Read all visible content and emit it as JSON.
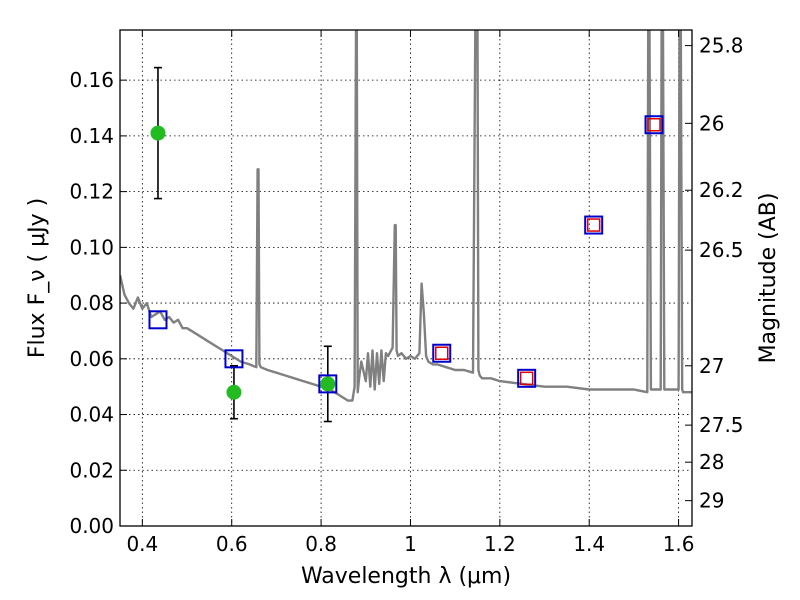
{
  "chart_data": {
    "type": "line",
    "xlabel": "Wavelength  λ (μm)",
    "ylabel": "Flux  F_ν  ( μJy )",
    "ylabel_right": "Magnitude (AB)",
    "xlim": [
      0.35,
      1.63
    ],
    "ylim": [
      0.0,
      0.178
    ],
    "grid": true,
    "x_ticks": [
      0.4,
      0.6,
      0.8,
      1.0,
      1.2,
      1.4,
      1.6
    ],
    "x_tick_labels": [
      "0.4",
      "0.6",
      "0.8",
      "1",
      "1.2",
      "1.4",
      "1.6"
    ],
    "y_ticks": [
      0.0,
      0.02,
      0.04,
      0.06,
      0.08,
      0.1,
      0.12,
      0.14,
      0.16
    ],
    "y_tick_labels": [
      "0.00",
      "0.02",
      "0.04",
      "0.06",
      "0.08",
      "0.10",
      "0.12",
      "0.14",
      "0.16"
    ],
    "right_ticks": [
      {
        "flux": 0.1724,
        "label": "25.8"
      },
      {
        "flux": 0.1445,
        "label": "26"
      },
      {
        "flux": 0.1205,
        "label": "26.2"
      },
      {
        "flux": 0.099,
        "label": "26.5"
      },
      {
        "flux": 0.0575,
        "label": "27"
      },
      {
        "flux": 0.0362,
        "label": "27.5"
      },
      {
        "flux": 0.0229,
        "label": "28"
      },
      {
        "flux": 0.0091,
        "label": "29"
      }
    ],
    "series": [
      {
        "type": "line",
        "color": "#808080",
        "x": [
          0.35,
          0.36,
          0.37,
          0.38,
          0.39,
          0.4,
          0.41,
          0.42,
          0.43,
          0.44,
          0.45,
          0.46,
          0.47,
          0.48,
          0.49,
          0.5,
          0.52,
          0.54,
          0.56,
          0.58,
          0.6,
          0.62,
          0.64,
          0.655,
          0.658,
          0.66,
          0.662,
          0.665,
          0.68,
          0.7,
          0.72,
          0.74,
          0.76,
          0.78,
          0.8,
          0.82,
          0.84,
          0.86,
          0.87,
          0.875,
          0.878,
          0.88,
          0.882,
          0.885,
          0.89,
          0.9,
          0.905,
          0.91,
          0.915,
          0.92,
          0.925,
          0.93,
          0.935,
          0.94,
          0.945,
          0.95,
          0.96,
          0.965,
          0.967,
          0.969,
          0.972,
          0.98,
          0.99,
          1.0,
          1.01,
          1.02,
          1.025,
          1.03,
          1.035,
          1.04,
          1.05,
          1.06,
          1.08,
          1.1,
          1.12,
          1.14,
          1.145,
          1.148,
          1.15,
          1.152,
          1.155,
          1.16,
          1.18,
          1.2,
          1.25,
          1.3,
          1.35,
          1.4,
          1.45,
          1.5,
          1.53,
          1.532,
          1.535,
          1.538,
          1.55,
          1.56,
          1.562,
          1.565,
          1.568,
          1.57,
          1.58,
          1.59,
          1.6,
          1.602,
          1.605,
          1.608,
          1.61,
          1.62,
          1.63
        ],
        "y": [
          0.09,
          0.083,
          0.08,
          0.078,
          0.082,
          0.078,
          0.08,
          0.075,
          0.076,
          0.077,
          0.074,
          0.075,
          0.073,
          0.074,
          0.071,
          0.071,
          0.069,
          0.067,
          0.065,
          0.063,
          0.061,
          0.059,
          0.058,
          0.057,
          0.128,
          0.128,
          0.058,
          0.057,
          0.056,
          0.055,
          0.054,
          0.053,
          0.052,
          0.051,
          0.05,
          0.049,
          0.047,
          0.045,
          0.045,
          0.05,
          0.178,
          0.178,
          0.048,
          0.053,
          0.059,
          0.052,
          0.062,
          0.05,
          0.063,
          0.049,
          0.062,
          0.051,
          0.063,
          0.052,
          0.062,
          0.061,
          0.064,
          0.108,
          0.108,
          0.063,
          0.061,
          0.062,
          0.06,
          0.061,
          0.06,
          0.062,
          0.087,
          0.076,
          0.061,
          0.059,
          0.058,
          0.058,
          0.057,
          0.056,
          0.056,
          0.055,
          0.178,
          0.178,
          0.178,
          0.056,
          0.054,
          0.053,
          0.053,
          0.052,
          0.051,
          0.05,
          0.05,
          0.049,
          0.049,
          0.049,
          0.048,
          0.178,
          0.178,
          0.049,
          0.049,
          0.049,
          0.178,
          0.178,
          0.049,
          0.049,
          0.049,
          0.049,
          0.049,
          0.178,
          0.178,
          0.049,
          0.048,
          0.048,
          0.048
        ]
      },
      {
        "type": "scatter",
        "marker": "circle",
        "color": "#22bb22",
        "x": [
          0.435,
          0.605,
          0.815
        ],
        "y": [
          0.141,
          0.048,
          0.051
        ],
        "yerr": [
          0.0235,
          0.0095,
          0.0135
        ]
      },
      {
        "type": "scatter",
        "marker": "square",
        "color": "#0000cc",
        "x": [
          0.435,
          0.605,
          0.815,
          1.07,
          1.26,
          1.41,
          1.545
        ],
        "y": [
          0.074,
          0.06,
          0.051,
          0.062,
          0.053,
          0.108,
          0.144
        ]
      },
      {
        "type": "scatter",
        "marker": "square",
        "color": "#dd0000",
        "x": [
          1.07,
          1.26,
          1.41,
          1.545
        ],
        "y": [
          0.062,
          0.053,
          0.108,
          0.144
        ]
      }
    ]
  }
}
